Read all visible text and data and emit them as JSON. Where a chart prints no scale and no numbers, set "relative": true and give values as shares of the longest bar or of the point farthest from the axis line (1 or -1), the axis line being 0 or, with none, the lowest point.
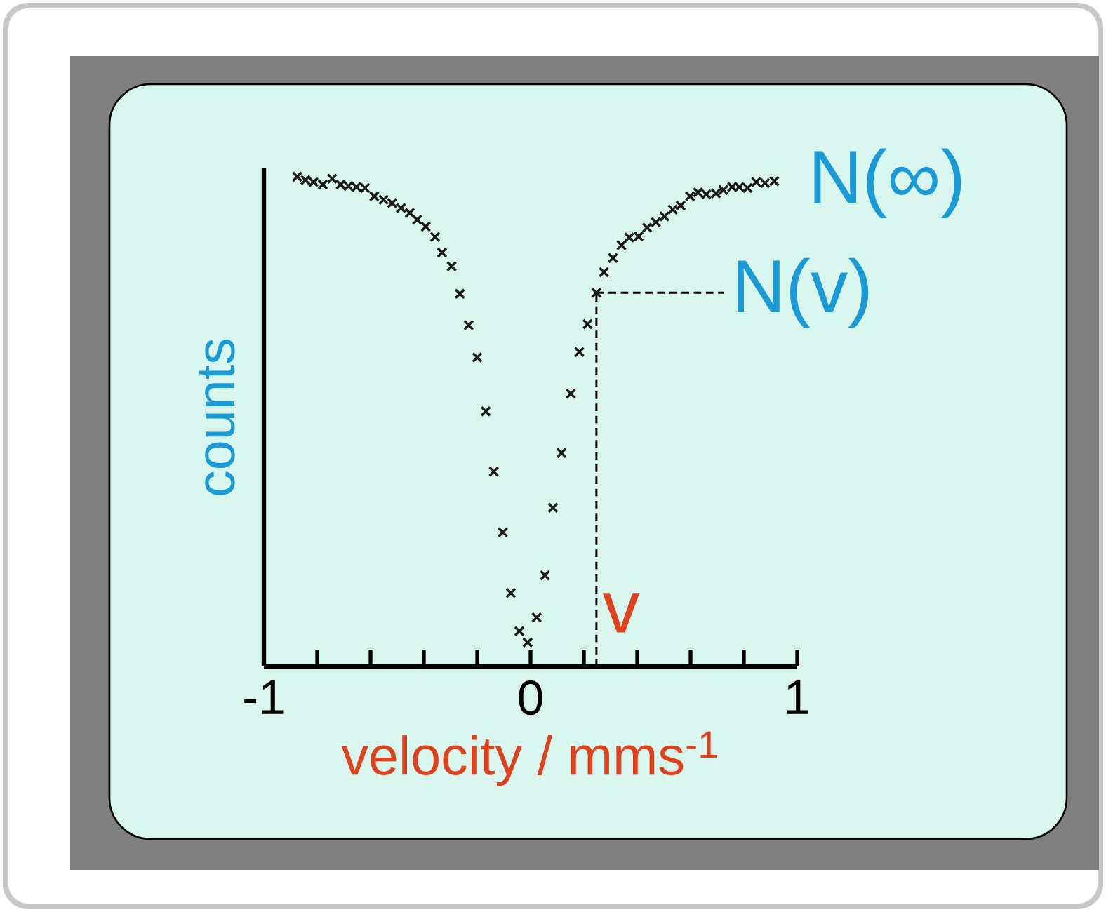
{
  "chart_data": {
    "type": "scatter",
    "relative": true,
    "xlabel": "velocity / mms$^{-1}$",
    "ylabel": "counts",
    "marker": "cross",
    "xlim": [
      -1,
      1
    ],
    "xticks": [
      -1,
      {
        "value": -0.8,
        "label": null
      },
      {
        "value": -0.6,
        "label": null
      },
      {
        "value": -0.4,
        "label": null
      },
      {
        "value": -0.2,
        "label": null
      },
      0,
      {
        "value": 0.2,
        "label": null
      },
      {
        "value": 0.4,
        "label": null
      },
      {
        "value": 0.6,
        "label": null
      },
      {
        "value": 0.8,
        "label": null
      },
      1
    ],
    "x": [
      -0.875,
      -0.844,
      -0.814,
      -0.779,
      -0.744,
      -0.712,
      -0.683,
      -0.653,
      -0.621,
      -0.586,
      -0.551,
      -0.519,
      -0.486,
      -0.453,
      -0.425,
      -0.393,
      -0.358,
      -0.332,
      -0.296,
      -0.265,
      -0.232,
      -0.2,
      -0.168,
      -0.138,
      -0.104,
      -0.074,
      -0.042,
      -0.011,
      0.023,
      0.054,
      0.084,
      0.116,
      0.151,
      0.183,
      0.214,
      0.247,
      0.275,
      0.309,
      0.341,
      0.37,
      0.405,
      0.437,
      0.47,
      0.502,
      0.533,
      0.563,
      0.598,
      0.628,
      0.659,
      0.695,
      0.723,
      0.756,
      0.783,
      0.814,
      0.846,
      0.879,
      0.914
    ],
    "series": [
      {
        "color": "#1a1a1a",
        "values": [
          1.0,
          0.993,
          0.989,
          0.984,
          0.996,
          0.984,
          0.981,
          0.979,
          0.977,
          0.96,
          0.953,
          0.946,
          0.936,
          0.926,
          0.912,
          0.898,
          0.877,
          0.845,
          0.817,
          0.761,
          0.697,
          0.631,
          0.521,
          0.398,
          0.274,
          0.15,
          0.072,
          0.049,
          0.1,
          0.186,
          0.324,
          0.436,
          0.557,
          0.642,
          0.699,
          0.763,
          0.805,
          0.834,
          0.86,
          0.876,
          0.878,
          0.896,
          0.907,
          0.919,
          0.933,
          0.941,
          0.96,
          0.968,
          0.964,
          0.966,
          0.973,
          0.979,
          0.979,
          0.977,
          0.989,
          0.987,
          0.991
        ]
      }
    ],
    "ref_lines": [
      {
        "axis": "x",
        "value": 0.247,
        "label": "v",
        "line_style": "dashed",
        "color": "#000000"
      },
      {
        "axis": "y",
        "value": 0.763,
        "label": "N(v)",
        "line_style": "dashed",
        "color": "#000000"
      }
    ],
    "annotations": [
      "N(∞)"
    ]
  }
}
